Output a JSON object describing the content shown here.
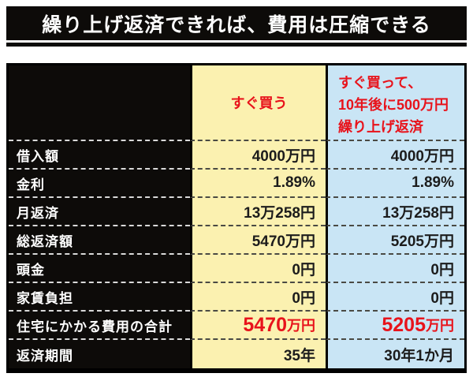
{
  "title": "繰り上げ返済できれば、費用は圧縮できる",
  "colors": {
    "banner_black": "#0D0B09",
    "column_buy_now_bg": "#FBF1B0",
    "column_early_repay_bg": "#C9E5F5",
    "accent_red": "#E8131B",
    "value_text": "#1C1C1C",
    "label_text": "#FFFFFF"
  },
  "table": {
    "columns": [
      {
        "key": "label",
        "header": ""
      },
      {
        "key": "buy_now",
        "header": "すぐ買う"
      },
      {
        "key": "early_repay",
        "header_lines": [
          "すぐ買って、",
          "10年後に500万円",
          "繰り上げ返済"
        ]
      }
    ],
    "rows": [
      {
        "label": "借入額",
        "col1": "4000万円",
        "col2": "4000万円"
      },
      {
        "label": "金利",
        "col1": "1.89%",
        "col2": "1.89%"
      },
      {
        "label": "月返済",
        "col1": "13万258円",
        "col2": "13万258円"
      },
      {
        "label": "総返済額",
        "col1": "5470万円",
        "col2": "5205万円"
      },
      {
        "label": "頭金",
        "col1": "0円",
        "col2": "0円"
      },
      {
        "label": "家賃負担",
        "col1": "0円",
        "col2": "0円"
      },
      {
        "label": "住宅にかかる費用の合計",
        "col1_num": "5470",
        "col1_unit": "万円",
        "col2_num": "5205",
        "col2_unit": "万円"
      },
      {
        "label": "返済期間",
        "col1": "35年",
        "col2": "30年1か月"
      }
    ]
  },
  "chart_data": {
    "type": "table",
    "title": "繰り上げ返済できれば、費用は圧縮できる",
    "columns": [
      "",
      "すぐ買う",
      "すぐ買って、10年後に500万円繰り上げ返済"
    ],
    "rows": [
      [
        "借入額",
        "4000万円",
        "4000万円"
      ],
      [
        "金利",
        "1.89%",
        "1.89%"
      ],
      [
        "月返済",
        "13万258円",
        "13万258円"
      ],
      [
        "総返済額",
        "5470万円",
        "5205万円"
      ],
      [
        "頭金",
        "0円",
        "0円"
      ],
      [
        "家賃負担",
        "0円",
        "0円"
      ],
      [
        "住宅にかかる費用の合計",
        "5470万円",
        "5205万円"
      ],
      [
        "返済期間",
        "35年",
        "30年1か月"
      ]
    ],
    "notes": "totals row 住宅にかかる費用の合計 emphasized in red"
  }
}
